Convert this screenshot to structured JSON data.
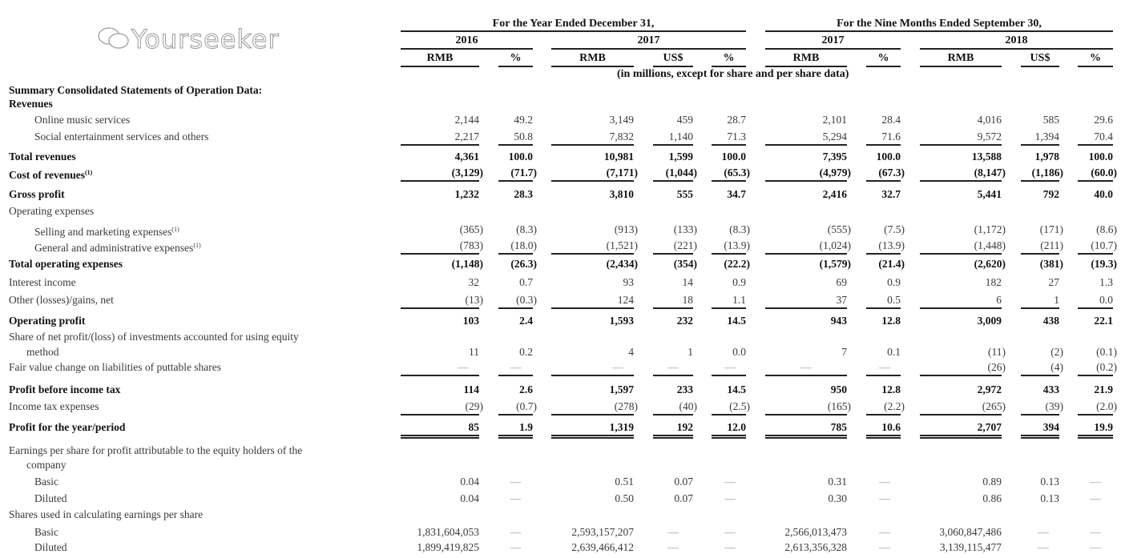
{
  "header": {
    "period_year": "For the Year Ended December 31,",
    "period_nine": "For the Nine Months Ended September 30,",
    "years": [
      "2016",
      "2017",
      "2017",
      "2018"
    ],
    "currencies": [
      "RMB",
      "%",
      "RMB",
      "US$",
      "%",
      "RMB",
      "%",
      "RMB",
      "US$",
      "%"
    ],
    "unit_note": "(in millions, except for share and per share data)"
  },
  "rows": [
    {
      "label": "Summary Consolidated Statements of Operation Data:",
      "bold": true,
      "values": []
    },
    {
      "label": "Revenues",
      "bold": true,
      "values": []
    },
    {
      "label": "Online music services",
      "indent": true,
      "values": [
        "2,144",
        "49.2",
        "3,149",
        "459",
        "28.7",
        "2,101",
        "28.4",
        "4,016",
        "585",
        "29.6"
      ]
    },
    {
      "label": "Social entertainment services and others",
      "indent": true,
      "rule": "single",
      "values": [
        "2,217",
        "50.8",
        "7,832",
        "1,140",
        "71.3",
        "5,294",
        "71.6",
        "9,572",
        "1,394",
        "70.4"
      ]
    },
    {
      "label": "Total revenues",
      "bold": true,
      "values": [
        "4,361",
        "100.0",
        "10,981",
        "1,599",
        "100.0",
        "7,395",
        "100.0",
        "13,588",
        "1,978",
        "100.0"
      ]
    },
    {
      "label": "Cost of revenues",
      "note": "(1)",
      "bold": true,
      "rule": "single",
      "values": [
        "(3,129)",
        "(71.7)",
        "(7,171)",
        "(1,044)",
        "(65.3)",
        "(4,979)",
        "(67.3)",
        "(8,147)",
        "(1,186)",
        "(60.0)"
      ]
    },
    {
      "label": "Gross profit",
      "bold": true,
      "values": [
        "1,232",
        "28.3",
        "3,810",
        "555",
        "34.7",
        "2,416",
        "32.7",
        "5,441",
        "792",
        "40.0"
      ]
    },
    {
      "label": "Operating expenses",
      "values": []
    },
    {
      "label": "Selling and marketing expenses",
      "note": "(1)",
      "indent": true,
      "values": [
        "(365)",
        "(8.3)",
        "(913)",
        "(133)",
        "(8.3)",
        "(555)",
        "(7.5)",
        "(1,172)",
        "(171)",
        "(8.6)"
      ]
    },
    {
      "label": "General and administrative expenses",
      "note": "(1)",
      "indent": true,
      "rule": "single",
      "values": [
        "(783)",
        "(18.0)",
        "(1,521)",
        "(221)",
        "(13.9)",
        "(1,024)",
        "(13.9)",
        "(1,448)",
        "(211)",
        "(10.7)"
      ]
    },
    {
      "label": "Total operating expenses",
      "bold": true,
      "values": [
        "(1,148)",
        "(26.3)",
        "(2,434)",
        "(354)",
        "(22.2)",
        "(1,579)",
        "(21.4)",
        "(2,620)",
        "(381)",
        "(19.3)"
      ]
    },
    {
      "label": "Interest income",
      "values": [
        "32",
        "0.7",
        "93",
        "14",
        "0.9",
        "69",
        "0.9",
        "182",
        "27",
        "1.3"
      ]
    },
    {
      "label": "Other (losses)/gains, net",
      "rule": "single",
      "values": [
        "(13)",
        "(0.3)",
        "124",
        "18",
        "1.1",
        "37",
        "0.5",
        "6",
        "1",
        "0.0"
      ]
    },
    {
      "label": "Operating profit",
      "bold": true,
      "values": [
        "103",
        "2.4",
        "1,593",
        "232",
        "14.5",
        "943",
        "12.8",
        "3,009",
        "438",
        "22.1"
      ]
    },
    {
      "label": "Share of net profit/(loss) of investments accounted for using equity",
      "values": []
    },
    {
      "label": "method",
      "indent_small": true,
      "values": [
        "11",
        "0.2",
        "4",
        "1",
        "0.0",
        "7",
        "0.1",
        "(11)",
        "(2)",
        "(0.1)"
      ]
    },
    {
      "label": "Fair value change on liabilities of puttable shares",
      "rule": "single",
      "values": [
        "—",
        "—",
        "—",
        "—",
        "—",
        "—",
        "—",
        "(26)",
        "(4)",
        "(0.2)"
      ]
    },
    {
      "label": "Profit before income tax",
      "bold": true,
      "values": [
        "114",
        "2.6",
        "1,597",
        "233",
        "14.5",
        "950",
        "12.8",
        "2,972",
        "433",
        "21.9"
      ]
    },
    {
      "label": "Income tax expenses",
      "rule": "single",
      "values": [
        "(29)",
        "(0.7)",
        "(278)",
        "(40)",
        "(2.5)",
        "(165)",
        "(2.2)",
        "(265)",
        "(39)",
        "(2.0)"
      ]
    },
    {
      "label": "Profit for the year/period",
      "bold": true,
      "rule": "double",
      "values": [
        "85",
        "1.9",
        "1,319",
        "192",
        "12.0",
        "785",
        "10.6",
        "2,707",
        "394",
        "19.9"
      ]
    },
    {
      "label": "Earnings per share for profit attributable to the equity holders of the",
      "values": []
    },
    {
      "label": "company",
      "indent_small": true,
      "values": []
    },
    {
      "label": "Basic",
      "indent": true,
      "values": [
        "0.04",
        "—",
        "0.51",
        "0.07",
        "—",
        "0.31",
        "—",
        "0.89",
        "0.13",
        "—"
      ]
    },
    {
      "label": "Diluted",
      "indent": true,
      "values": [
        "0.04",
        "—",
        "0.50",
        "0.07",
        "—",
        "0.30",
        "—",
        "0.86",
        "0.13",
        "—"
      ]
    },
    {
      "label": "Shares used in calculating earnings per share",
      "values": []
    },
    {
      "label": "Basic",
      "indent": true,
      "values": [
        "1,831,604,053",
        "—",
        "2,593,157,207",
        "—",
        "—",
        "2,566,013,473",
        "—",
        "3,060,847,486",
        "—",
        "—"
      ]
    },
    {
      "label": "Diluted",
      "indent": true,
      "values": [
        "1,899,419,825",
        "—",
        "2,639,466,412",
        "—",
        "—",
        "2,613,356,328",
        "—",
        "3,139,115,477",
        "—",
        "—"
      ]
    }
  ],
  "watermark": {
    "text": "Yourseeker",
    "icon": "wechat-icon"
  }
}
